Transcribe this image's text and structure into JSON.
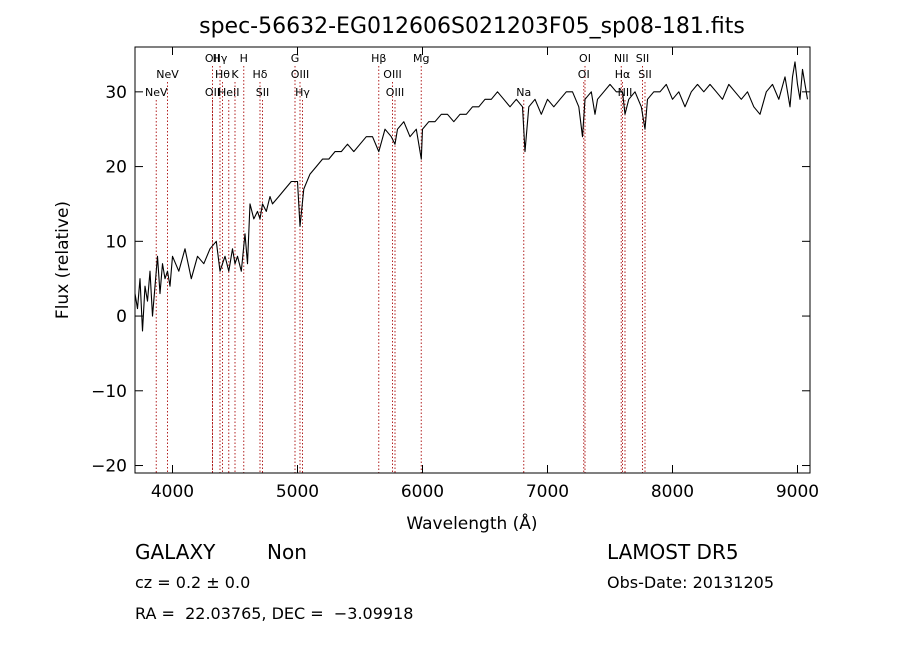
{
  "chart_data": {
    "type": "line",
    "title": "spec-56632-EG012606S021203F05_sp08-181.fits",
    "xlabel": "Wavelength (Å)",
    "ylabel": "Flux (relative)",
    "xlim": [
      3700,
      9100
    ],
    "ylim": [
      -21,
      36
    ],
    "xticks": [
      4000,
      5000,
      6000,
      7000,
      8000,
      9000
    ],
    "yticks": [
      -20,
      -10,
      0,
      10,
      20,
      30
    ],
    "xtick_labels": [
      "4000",
      "5000",
      "6000",
      "7000",
      "8000",
      "9000"
    ],
    "ytick_labels": [
      "−20",
      "−10",
      "0",
      "10",
      "20",
      "30"
    ],
    "grid": false,
    "series": [
      {
        "x": [
          3700,
          3720,
          3740,
          3760,
          3780,
          3800,
          3820,
          3840,
          3860,
          3880,
          3900,
          3920,
          3940,
          3960,
          3980,
          4000,
          4050,
          4100,
          4150,
          4200,
          4250,
          4300,
          4350,
          4380,
          4400,
          4420,
          4450,
          4480,
          4500,
          4520,
          4550,
          4580,
          4600,
          4620,
          4650,
          4680,
          4700,
          4720,
          4750,
          4780,
          4800,
          4850,
          4900,
          4950,
          5000,
          5020,
          5050,
          5100,
          5150,
          5200,
          5250,
          5300,
          5350,
          5400,
          5450,
          5500,
          5550,
          5600,
          5650,
          5700,
          5750,
          5780,
          5800,
          5850,
          5900,
          5950,
          5990,
          6000,
          6050,
          6100,
          6150,
          6200,
          6250,
          6300,
          6350,
          6400,
          6450,
          6500,
          6550,
          6600,
          6650,
          6700,
          6750,
          6800,
          6820,
          6850,
          6900,
          6950,
          7000,
          7050,
          7100,
          7150,
          7200,
          7250,
          7280,
          7300,
          7350,
          7380,
          7400,
          7450,
          7500,
          7550,
          7600,
          7620,
          7650,
          7700,
          7750,
          7780,
          7800,
          7850,
          7900,
          7950,
          8000,
          8050,
          8100,
          8150,
          8200,
          8250,
          8300,
          8350,
          8400,
          8450,
          8500,
          8550,
          8600,
          8650,
          8700,
          8750,
          8800,
          8850,
          8900,
          8940,
          8960,
          8980,
          9000,
          9020,
          9040,
          9060,
          9080
        ],
        "y": [
          3,
          1,
          5,
          -2,
          4,
          2,
          6,
          0,
          4,
          8,
          3,
          7,
          5,
          6,
          4,
          8,
          6,
          9,
          5,
          8,
          7,
          9,
          10,
          6,
          7,
          8,
          6,
          9,
          7,
          8,
          6,
          11,
          7,
          15,
          13,
          14,
          13,
          15,
          14,
          16,
          15,
          16,
          17,
          18,
          18,
          12,
          17,
          19,
          20,
          21,
          21,
          22,
          22,
          23,
          22,
          23,
          24,
          24,
          22,
          25,
          24,
          23,
          25,
          26,
          24,
          25,
          21,
          25,
          26,
          26,
          27,
          27,
          26,
          27,
          27,
          28,
          28,
          29,
          29,
          30,
          29,
          28,
          29,
          28,
          22,
          28,
          29,
          27,
          29,
          28,
          29,
          30,
          30,
          28,
          24,
          29,
          30,
          27,
          29,
          30,
          31,
          30,
          30,
          27,
          29,
          30,
          28,
          25,
          29,
          30,
          30,
          31,
          29,
          30,
          28,
          30,
          31,
          30,
          31,
          30,
          29,
          31,
          30,
          29,
          30,
          28,
          27,
          30,
          31,
          29,
          32,
          28,
          32,
          34,
          31,
          29,
          33,
          31,
          29
        ]
      }
    ],
    "emission_lines": [
      {
        "label": "NeV",
        "x": 3870,
        "row": 3
      },
      {
        "label": "NeV",
        "x": 3960,
        "row": 2
      },
      {
        "label": "OII",
        "x": 4320,
        "row": 1
      },
      {
        "label": "OII",
        "x": 4320,
        "row": 3
      },
      {
        "label": "Hγ",
        "x": 4380,
        "row": 1
      },
      {
        "label": "Hθ",
        "x": 4400,
        "row": 2
      },
      {
        "label": "HeII",
        "x": 4450,
        "row": 3
      },
      {
        "label": "K",
        "x": 4500,
        "row": 2
      },
      {
        "label": "H",
        "x": 4570,
        "row": 1
      },
      {
        "label": "Hδ",
        "x": 4700,
        "row": 2
      },
      {
        "label": "SII",
        "x": 4720,
        "row": 3
      },
      {
        "label": "G",
        "x": 4980,
        "row": 1
      },
      {
        "label": "OIII",
        "x": 5020,
        "row": 2
      },
      {
        "label": "Hγ",
        "x": 5040,
        "row": 3
      },
      {
        "label": "Hβ",
        "x": 5650,
        "row": 1
      },
      {
        "label": "OIII",
        "x": 5760,
        "row": 2
      },
      {
        "label": "OIII",
        "x": 5780,
        "row": 3
      },
      {
        "label": "Mg",
        "x": 5990,
        "row": 1
      },
      {
        "label": "Na",
        "x": 6810,
        "row": 3
      },
      {
        "label": "OI",
        "x": 7300,
        "row": 1
      },
      {
        "label": "OI",
        "x": 7290,
        "row": 2
      },
      {
        "label": "NII",
        "x": 7590,
        "row": 1
      },
      {
        "label": "Hα",
        "x": 7600,
        "row": 2
      },
      {
        "label": "NII",
        "x": 7620,
        "row": 3
      },
      {
        "label": "SII",
        "x": 7760,
        "row": 1
      },
      {
        "label": "SII",
        "x": 7780,
        "row": 2
      }
    ]
  },
  "info": {
    "object_class": "GALAXY",
    "subclass": "Non",
    "survey": "LAMOST DR5",
    "cz": "cz = 0.2 ± 0.0",
    "obs_date": "Obs-Date: 20131205",
    "radec": "RA =  22.03765, DEC =  −3.09918"
  }
}
